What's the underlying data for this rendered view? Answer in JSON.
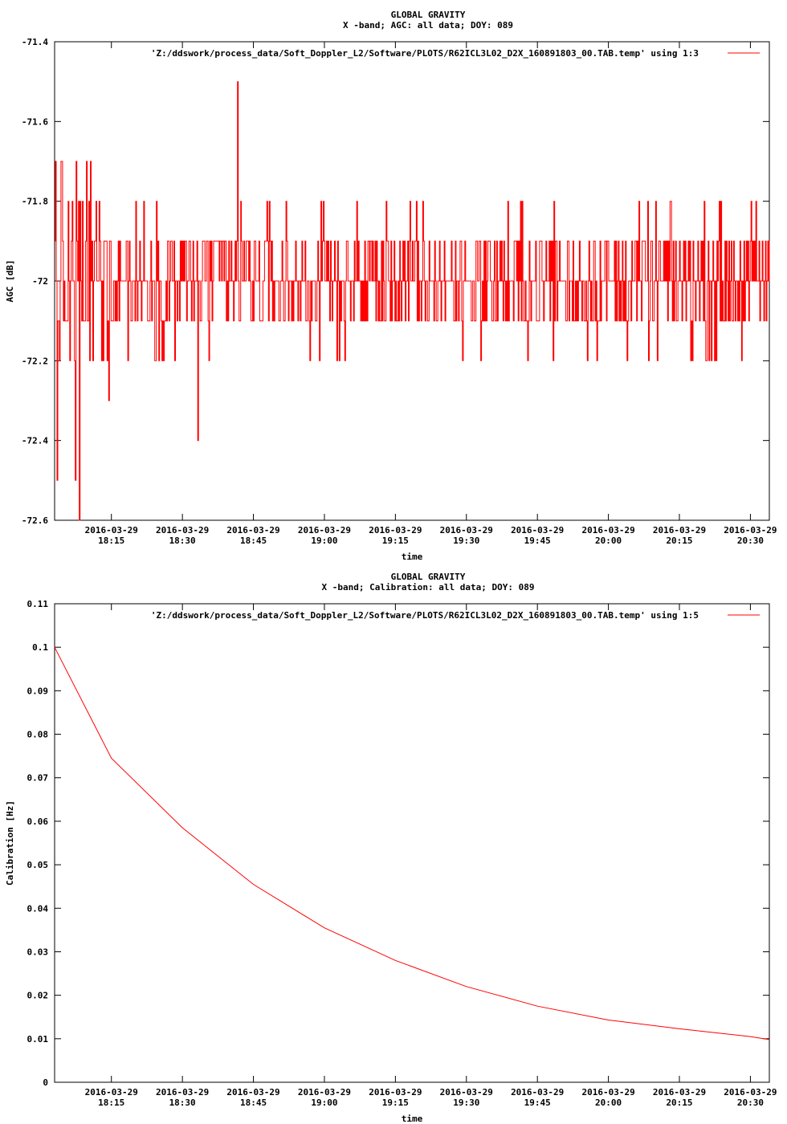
{
  "chart_data": [
    {
      "type": "line",
      "title": "GLOBAL GRAVITY",
      "subtitle": "X -band; AGC: all data; DOY: 089",
      "xlabel": "time",
      "ylabel": "AGC [dB]",
      "ylim": [
        -72.6,
        -71.4
      ],
      "yticks": [
        "-71.4",
        "-71.6",
        "-71.8",
        "-72",
        "-72.2",
        "-72.4",
        "-72.6"
      ],
      "xtick_dates": [
        "2016-03-29",
        "2016-03-29",
        "2016-03-29",
        "2016-03-29",
        "2016-03-29",
        "2016-03-29",
        "2016-03-29",
        "2016-03-29",
        "2016-03-29",
        "2016-03-29"
      ],
      "xtick_times": [
        "18:15",
        "18:30",
        "18:45",
        "19:00",
        "19:15",
        "19:30",
        "19:45",
        "20:00",
        "20:15",
        "20:30"
      ],
      "xlim": [
        "2016-03-29 18:03",
        "2016-03-29 20:34"
      ],
      "grid": false,
      "legend_position": "top-right",
      "color": "#ff0000",
      "series": [
        {
          "name": "'Z:/ddswork/process_data/Soft_Doppler_L2/Software/PLOTS/R62ICL3L02_D2X_160891803_00.TAB.temp' using 1:3",
          "note": "quantized noisy AGC samples, step 0.1 dB, centered near -72",
          "mean": -72.0,
          "min": -72.6,
          "max": -71.5,
          "sample_count": 900
        }
      ]
    },
    {
      "type": "line",
      "title": "GLOBAL GRAVITY",
      "subtitle": "X -band; Calibration: all data; DOY: 089",
      "xlabel": "time",
      "ylabel": "Calibration [Hz]",
      "ylim": [
        0,
        0.11
      ],
      "yticks": [
        "0.11",
        "0.1",
        "0.09",
        "0.08",
        "0.07",
        "0.06",
        "0.05",
        "0.04",
        "0.03",
        "0.02",
        "0.01",
        "0"
      ],
      "xtick_dates": [
        "2016-03-29",
        "2016-03-29",
        "2016-03-29",
        "2016-03-29",
        "2016-03-29",
        "2016-03-29",
        "2016-03-29",
        "2016-03-29",
        "2016-03-29",
        "2016-03-29"
      ],
      "xtick_times": [
        "18:15",
        "18:30",
        "18:45",
        "19:00",
        "19:15",
        "19:30",
        "19:45",
        "20:00",
        "20:15",
        "20:30"
      ],
      "xlim": [
        "2016-03-29 18:03",
        "2016-03-29 20:34"
      ],
      "grid": false,
      "legend_position": "top-right",
      "color": "#ff0000",
      "series": [
        {
          "name": "'Z:/ddswork/process_data/Soft_Doppler_L2/Software/PLOTS/R62ICL3L02_D2X_160891803_00.TAB.temp' using 1:5",
          "x": [
            "18:03",
            "18:15",
            "18:30",
            "18:45",
            "19:00",
            "19:15",
            "19:30",
            "19:45",
            "20:00",
            "20:15",
            "20:30",
            "20:34"
          ],
          "y": [
            0.1,
            0.0745,
            0.0585,
            0.0455,
            0.0355,
            0.028,
            0.022,
            0.0175,
            0.0143,
            0.0123,
            0.0105,
            0.0098
          ]
        }
      ]
    }
  ]
}
